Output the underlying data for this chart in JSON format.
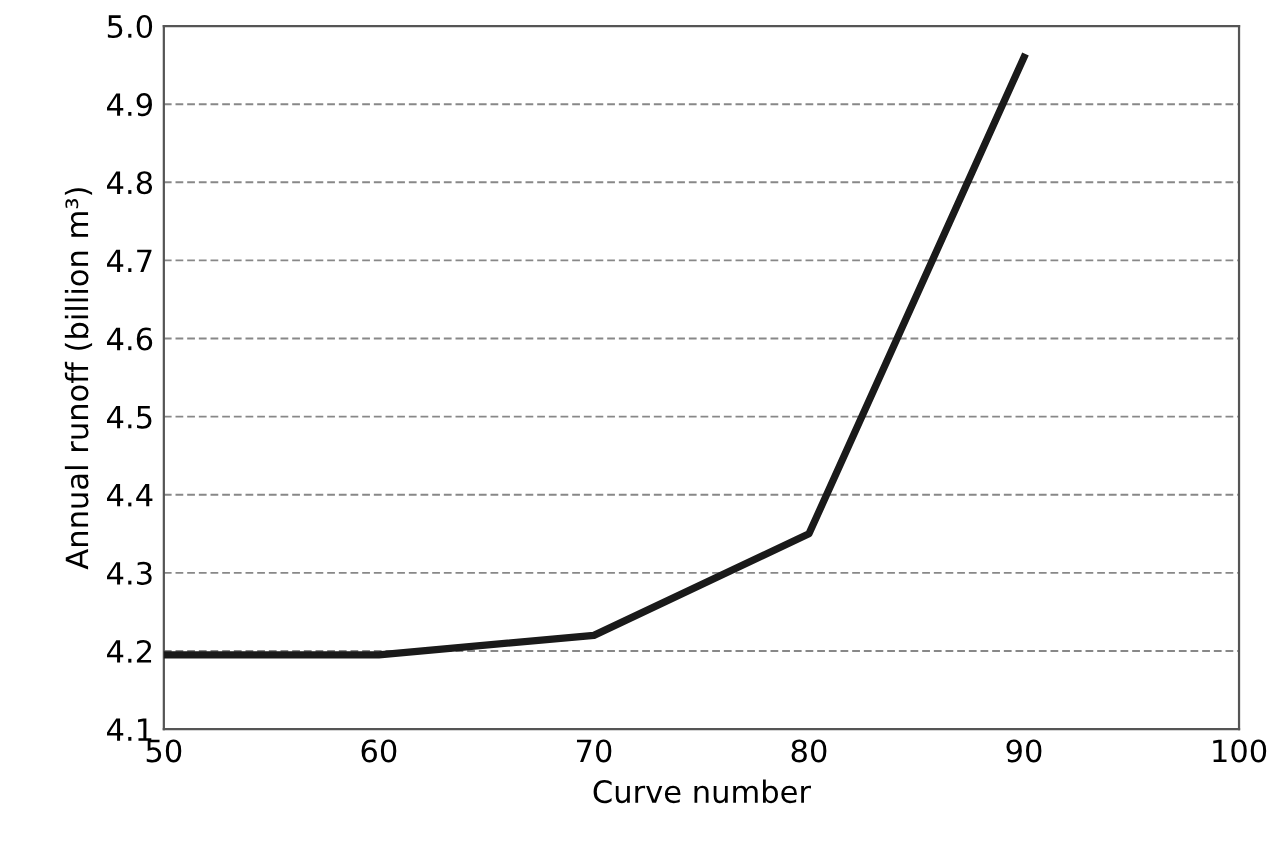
{
  "chart_data": {
    "type": "line",
    "xlabel": "Curve number",
    "ylabel": "Annual runoff (billion m³)",
    "x": [
      50,
      60,
      70,
      80,
      90
    ],
    "series": [
      {
        "color": "#1a1a1a",
        "values": [
          4.195,
          4.195,
          4.22,
          4.35,
          4.96
        ]
      }
    ],
    "xlim": [
      50,
      100
    ],
    "xticks": [
      50,
      60,
      70,
      80,
      90,
      100
    ],
    "ylim": [
      4.1,
      5.0
    ],
    "yticks": [
      {
        "value": 4.1,
        "label": "4.1"
      },
      {
        "value": 4.2,
        "label": "4.2"
      },
      {
        "value": 4.3,
        "label": "4.3"
      },
      {
        "value": 4.4,
        "label": "4.4"
      },
      {
        "value": 4.5,
        "label": "4.5"
      },
      {
        "value": 4.6,
        "label": "4.6"
      },
      {
        "value": 4.7,
        "label": "4.7"
      },
      {
        "value": 4.8,
        "label": "4.8"
      },
      {
        "value": 4.9,
        "label": "4.9"
      },
      {
        "value": 5.0,
        "label": "5.0"
      }
    ],
    "grid": "y",
    "marker": "none",
    "line_style": "solid"
  }
}
